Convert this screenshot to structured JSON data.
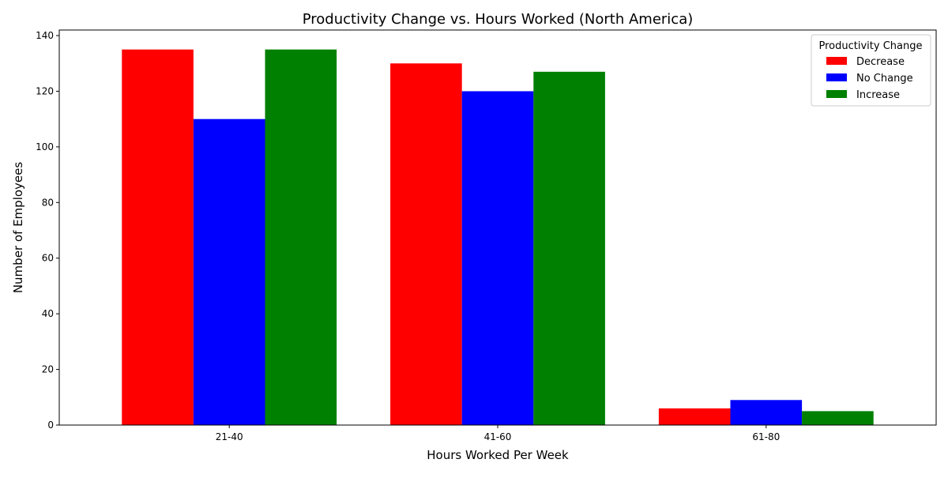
{
  "chart_data": {
    "type": "bar",
    "title": "Productivity Change vs. Hours Worked (North America)",
    "xlabel": "Hours Worked Per Week",
    "ylabel": "Number of Employees",
    "categories": [
      "21-40",
      "41-60",
      "61-80"
    ],
    "series": [
      {
        "name": "Decrease",
        "color": "#ff0000",
        "values": [
          135,
          130,
          6
        ]
      },
      {
        "name": "No Change",
        "color": "#0000ff",
        "values": [
          110,
          120,
          9
        ]
      },
      {
        "name": "Increase",
        "color": "#008000",
        "values": [
          135,
          127,
          5
        ]
      }
    ],
    "ylim": [
      0,
      142
    ],
    "yticks": [
      0,
      20,
      40,
      60,
      80,
      100,
      120,
      140
    ],
    "legend": {
      "title": "Productivity Change",
      "placement": "top-right"
    },
    "grid": false
  }
}
